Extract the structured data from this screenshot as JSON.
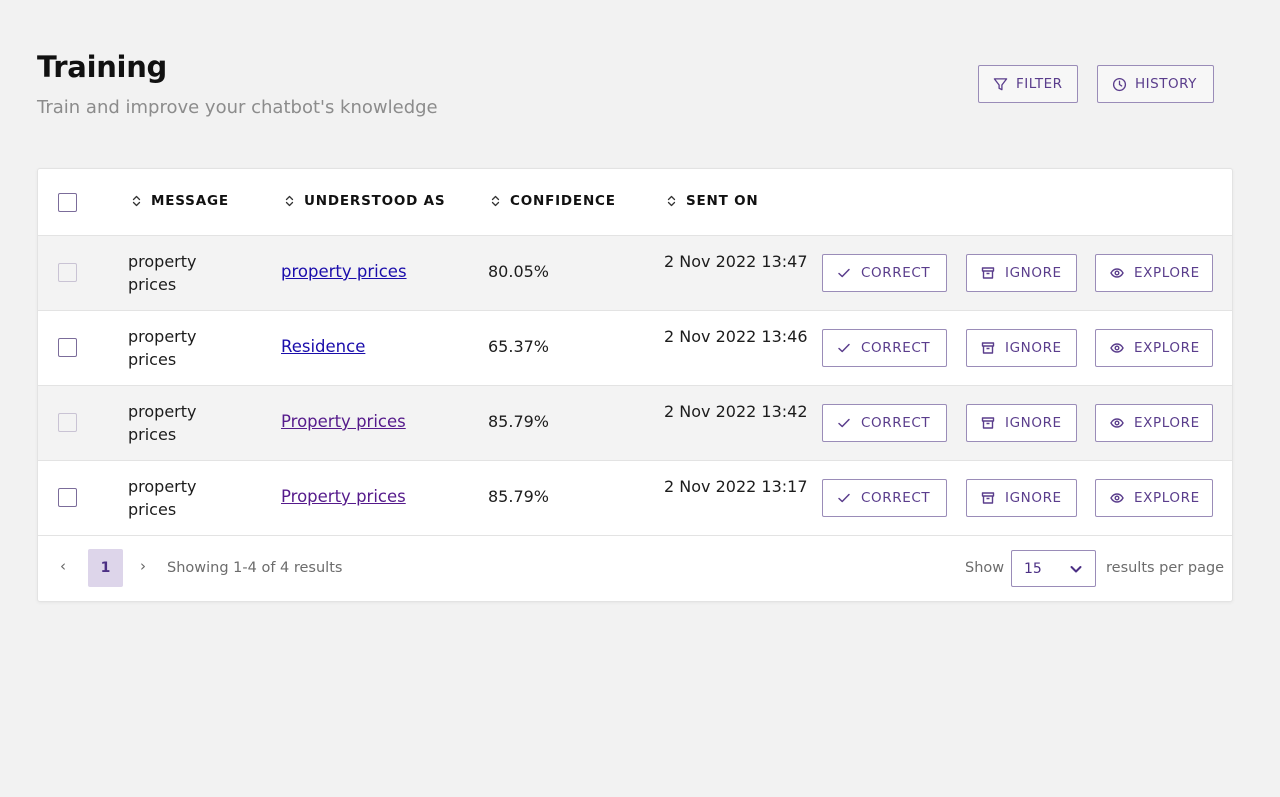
{
  "header": {
    "title": "Training",
    "subtitle": "Train and improve your chatbot's knowledge",
    "filter_label": "FILTER",
    "history_label": "HISTORY"
  },
  "table": {
    "columns": [
      "MESSAGE",
      "UNDERSTOOD AS",
      "CONFIDENCE",
      "SENT ON"
    ],
    "rows": [
      {
        "message": "property prices",
        "understood_as": "property prices",
        "confidence": "80.05%",
        "sent_on": "2 Nov 2022 13:47"
      },
      {
        "message": "property prices",
        "understood_as": "Residence",
        "confidence": "65.37%",
        "sent_on": "2 Nov 2022 13:46"
      },
      {
        "message": "property prices",
        "understood_as": "Property prices",
        "confidence": "85.79%",
        "sent_on": "2 Nov 2022 13:42"
      },
      {
        "message": "property prices",
        "understood_as": "Property prices",
        "confidence": "85.79%",
        "sent_on": "2 Nov 2022 13:17"
      }
    ],
    "actions": {
      "correct": "CORRECT",
      "ignore": "IGNORE",
      "explore": "EXPLORE"
    }
  },
  "pagination": {
    "prev": "‹",
    "next": "›",
    "current_page": "1",
    "showing": "Showing 1-4 of 4 results",
    "show_label": "Show",
    "per_page": "15",
    "per_page_suffix": "results per page"
  },
  "colors": {
    "accent": "#5a3d8c",
    "link_unvisited": "#1a0dab",
    "link_visited": "#551a8b",
    "row_shaded": "#f3f3f3",
    "page_bg": "#f2f2f2"
  }
}
